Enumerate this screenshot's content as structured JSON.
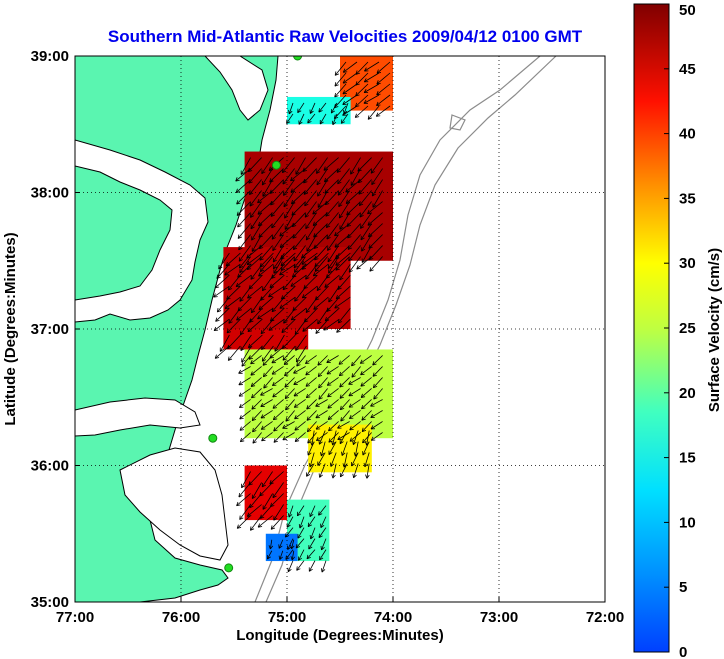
{
  "title": "Southern Mid-Atlantic Raw Velocities 2009/04/12 0100 GMT",
  "map": {
    "xlabel": "Longitude (Degrees:Minutes)",
    "ylabel": "Latitude (Degrees:Minutes)",
    "xlim": [
      -77,
      -72
    ],
    "ylim": [
      35,
      39
    ],
    "xticks": [
      {
        "value": -77,
        "label": "77:00"
      },
      {
        "value": -76,
        "label": "76:00"
      },
      {
        "value": -75,
        "label": "75:00"
      },
      {
        "value": -74,
        "label": "74:00"
      },
      {
        "value": -73,
        "label": "73:00"
      },
      {
        "value": -72,
        "label": "72:00"
      }
    ],
    "yticks": [
      {
        "value": 35,
        "label": "35:00"
      },
      {
        "value": 36,
        "label": "36:00"
      },
      {
        "value": 37,
        "label": "37:00"
      },
      {
        "value": 38,
        "label": "38:00"
      },
      {
        "value": 39,
        "label": "39:00"
      }
    ],
    "grid": true,
    "land_color": "#5af5b0",
    "coastline_color": "#000000",
    "bathymetry_color": "#8c8c8c",
    "stations": [
      {
        "lon": -74.9,
        "lat": 39.0
      },
      {
        "lon": -75.1,
        "lat": 38.2
      },
      {
        "lon": -75.7,
        "lat": 36.2
      },
      {
        "lon": -75.55,
        "lat": 35.25
      }
    ]
  },
  "colorbar": {
    "label": "Surface Velocity (cm/s)",
    "min": 0,
    "max": 50,
    "ticks": [
      {
        "value": 0,
        "label": "0"
      },
      {
        "value": 5,
        "label": "5"
      },
      {
        "value": 10,
        "label": "10"
      },
      {
        "value": 15,
        "label": "15"
      },
      {
        "value": 20,
        "label": "20"
      },
      {
        "value": 25,
        "label": "25"
      },
      {
        "value": 30,
        "label": "30"
      },
      {
        "value": 35,
        "label": "35"
      },
      {
        "value": 40,
        "label": "40"
      },
      {
        "value": 45,
        "label": "45"
      },
      {
        "value": 50,
        "label": "50"
      }
    ],
    "colormap": "jet"
  },
  "chart_data": {
    "type": "heatmap",
    "title": "Southern Mid-Atlantic Raw Velocities 2009/04/12 0100 GMT",
    "xlabel": "Longitude (Degrees:Minutes)",
    "ylabel": "Latitude (Degrees:Minutes)",
    "value_label": "Surface Velocity (cm/s)",
    "xlim": [
      -77,
      -72
    ],
    "ylim": [
      35,
      39
    ],
    "clim": [
      0,
      50
    ],
    "regions": [
      {
        "lon_range": [
          -74.5,
          -74.0
        ],
        "lat_range": [
          38.6,
          39.0
        ],
        "speed": 40,
        "direction_deg": 230
      },
      {
        "lon_range": [
          -75.0,
          -74.4
        ],
        "lat_range": [
          38.5,
          38.7
        ],
        "speed": 20,
        "direction_deg": 210
      },
      {
        "lon_range": [
          -75.4,
          -74.0
        ],
        "lat_range": [
          37.5,
          38.3
        ],
        "speed": 48,
        "direction_deg": 220
      },
      {
        "lon_range": [
          -75.6,
          -74.4
        ],
        "lat_range": [
          37.0,
          37.6
        ],
        "speed": 47,
        "direction_deg": 225
      },
      {
        "lon_range": [
          -75.6,
          -74.8
        ],
        "lat_range": [
          36.85,
          37.0
        ],
        "speed": 46,
        "direction_deg": 220
      },
      {
        "lon_range": [
          -75.4,
          -74.0
        ],
        "lat_range": [
          36.2,
          36.85
        ],
        "speed": 28,
        "direction_deg": 230
      },
      {
        "lon_range": [
          -74.8,
          -74.2
        ],
        "lat_range": [
          35.95,
          36.3
        ],
        "speed": 32,
        "direction_deg": 200
      },
      {
        "lon_range": [
          -75.4,
          -75.0
        ],
        "lat_range": [
          35.6,
          36.0
        ],
        "speed": 45,
        "direction_deg": 220
      },
      {
        "lon_range": [
          -75.0,
          -74.6
        ],
        "lat_range": [
          35.3,
          35.75
        ],
        "speed": 22,
        "direction_deg": 210
      },
      {
        "lon_range": [
          -75.2,
          -74.9
        ],
        "lat_range": [
          35.3,
          35.5
        ],
        "speed": 12,
        "direction_deg": 200
      }
    ]
  }
}
